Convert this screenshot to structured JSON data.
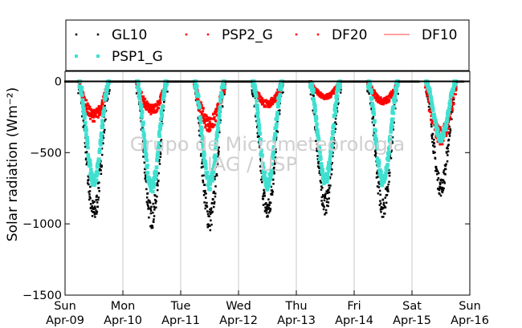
{
  "chart_data": {
    "type": "scatter",
    "title": "",
    "xlabel": "",
    "ylabel": "Solar radiation (Wm⁻²)",
    "ylim": [
      -1500,
      70
    ],
    "xlim": [
      0,
      7
    ],
    "yticks": [
      0,
      -500,
      -1000,
      -1500
    ],
    "yticklabels": [
      "0",
      "−500",
      "−1000",
      "−1500"
    ],
    "xticks": [
      0,
      1,
      2,
      3,
      4,
      5,
      6,
      7
    ],
    "xticklabels": [
      [
        "Sun",
        "Apr-09"
      ],
      [
        "Mon",
        "Apr-10"
      ],
      [
        "Tue",
        "Apr-11"
      ],
      [
        "Wed",
        "Apr-12"
      ],
      [
        "Thu",
        "Apr-13"
      ],
      [
        "Fri",
        "Apr-14"
      ],
      [
        "Sat",
        "Apr-15"
      ],
      [
        "Sun",
        "Apr-16"
      ]
    ],
    "grid": "vertical",
    "legend_position": "top",
    "watermark": [
      "Grupo de Micrometeorologia",
      "IAG / USP"
    ],
    "series": [
      {
        "name": "GL10",
        "color": "#000000",
        "marker": "dot",
        "daily_peaks": [
          {
            "x": 0.5,
            "y": -920
          },
          {
            "x": 1.5,
            "y": -950
          },
          {
            "x": 2.5,
            "y": -970
          },
          {
            "x": 3.5,
            "y": -910
          },
          {
            "x": 4.5,
            "y": -860
          },
          {
            "x": 5.5,
            "y": -880
          },
          {
            "x": 6.5,
            "y": -740
          }
        ]
      },
      {
        "name": "PSP1_G",
        "color": "#40e0d0",
        "marker": "dot",
        "daily_peaks": [
          {
            "x": 0.5,
            "y": -700
          },
          {
            "x": 1.5,
            "y": -740
          },
          {
            "x": 2.5,
            "y": -720
          },
          {
            "x": 3.5,
            "y": -720
          },
          {
            "x": 4.5,
            "y": -690
          },
          {
            "x": 5.5,
            "y": -700
          },
          {
            "x": 6.5,
            "y": -400
          }
        ]
      },
      {
        "name": "PSP2_G",
        "color": "#ff0000",
        "marker": "dot",
        "daily_peaks": [
          {
            "x": 0.5,
            "y": -240
          },
          {
            "x": 1.5,
            "y": -200
          },
          {
            "x": 2.5,
            "y": -300
          },
          {
            "x": 3.5,
            "y": -160
          },
          {
            "x": 4.5,
            "y": -110
          },
          {
            "x": 5.5,
            "y": -140
          },
          {
            "x": 6.5,
            "y": -380
          }
        ]
      },
      {
        "name": "DF20",
        "color": "#ff0000",
        "marker": "dot",
        "daily_peaks": []
      },
      {
        "name": "DF10",
        "color": "#ff8080",
        "marker": "line",
        "daily_peaks": []
      }
    ]
  }
}
